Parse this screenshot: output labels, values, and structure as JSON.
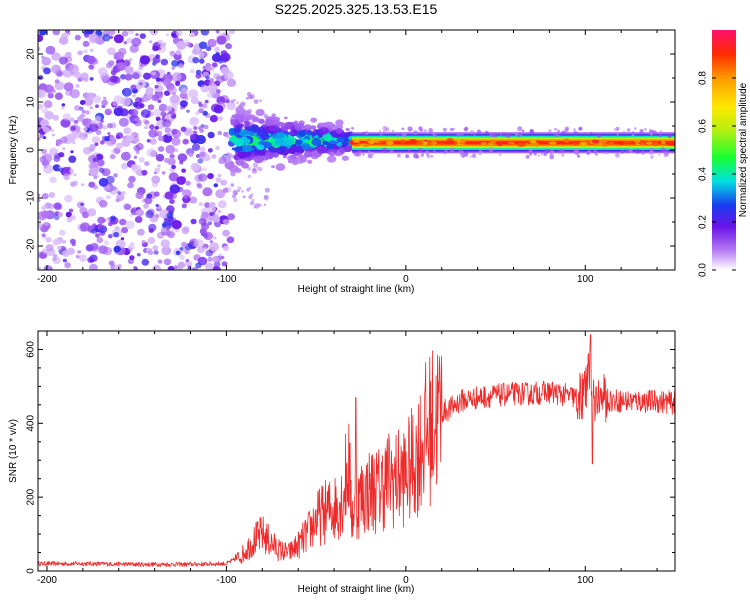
{
  "figure_title": "S225.2025.325.13.53.E15",
  "chart_data": [
    {
      "type": "heatmap",
      "title": "S225.2025.325.13.53.E15",
      "xlabel": "Height of straight line (km)",
      "ylabel": "Frequency (Hz)",
      "xlim": [
        -205,
        150
      ],
      "ylim": [
        -25,
        25
      ],
      "xticks": [
        -200,
        -100,
        0,
        100
      ],
      "yticks": [
        -20,
        -10,
        0,
        10,
        20
      ],
      "colorbar": {
        "label": "Normalized spectral amplitude",
        "range": [
          0,
          1
        ],
        "ticks": [
          "0.0",
          "0.2",
          "0.4",
          "0.6",
          "0.8"
        ]
      },
      "regions": [
        {
          "name": "noise",
          "x_range": [
            -205,
            -97
          ],
          "freq_range": [
            -25,
            25
          ],
          "amplitude": 0.1
        },
        {
          "name": "emergence",
          "x_range": [
            -97,
            -30
          ],
          "freq_range": [
            -5,
            8
          ],
          "center_freq": 2,
          "amplitude": 0.3
        },
        {
          "name": "signal",
          "x_range": [
            -30,
            150
          ],
          "freq_range": [
            0,
            3
          ],
          "center_freq": 1.5,
          "amplitude": 0.85
        }
      ]
    },
    {
      "type": "line",
      "xlabel": "Height of straight line (km)",
      "ylabel": "SNR (10 * v/v)",
      "xlim": [
        -205,
        150
      ],
      "ylim": [
        0,
        650
      ],
      "xticks": [
        -200,
        -100,
        0,
        100
      ],
      "yticks": [
        0,
        200,
        400,
        600
      ],
      "series": [
        {
          "name": "SNR",
          "color": "#ee2b2b",
          "x": [
            -205,
            -180,
            -150,
            -120,
            -100,
            -92,
            -85,
            -80,
            -75,
            -70,
            -65,
            -60,
            -55,
            -50,
            -45,
            -40,
            -35,
            -32,
            -30,
            -25,
            -20,
            -15,
            -10,
            -5,
            0,
            5,
            10,
            15,
            20,
            25,
            30,
            40,
            50,
            60,
            70,
            80,
            90,
            95,
            100,
            103,
            105,
            110,
            120,
            130,
            140,
            150
          ],
          "y": [
            20,
            20,
            18,
            18,
            20,
            40,
            80,
            100,
            75,
            55,
            50,
            70,
            100,
            140,
            160,
            170,
            200,
            300,
            150,
            200,
            220,
            220,
            250,
            250,
            260,
            300,
            360,
            400,
            430,
            440,
            460,
            470,
            475,
            480,
            480,
            485,
            475,
            470,
            480,
            550,
            470,
            465,
            460,
            460,
            460,
            455
          ]
        }
      ],
      "spikes": [
        {
          "x": -28,
          "y": 470
        },
        {
          "x": 103,
          "y": 640
        },
        {
          "x": 104,
          "y": 290
        }
      ]
    }
  ]
}
